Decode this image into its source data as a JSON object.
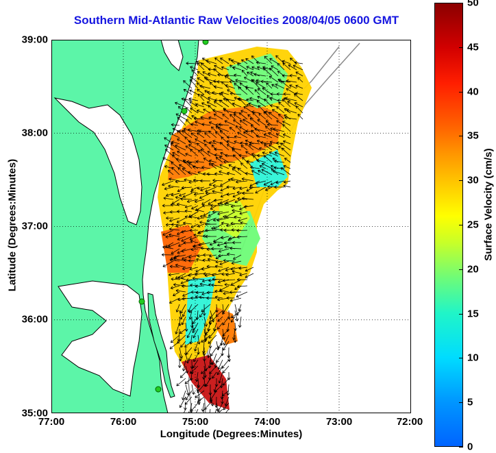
{
  "title": "Southern Mid-Atlantic Raw Velocities 2008/04/05 0600 GMT",
  "map": {
    "x_label": "Longitude (Degrees:Minutes)",
    "y_label": "Latitude (Degrees:Minutes)",
    "x_ticks": [
      "77:00",
      "76:00",
      "75:00",
      "74:00",
      "73:00",
      "72:00"
    ],
    "y_ticks": [
      "39:00",
      "38:00",
      "37:00",
      "36:00",
      "35:00"
    ],
    "lon_range": [
      -77,
      -72
    ],
    "lat_range": [
      35,
      39
    ],
    "grid": "dotted",
    "land_color": "#5cf5a8",
    "coastline_color": "#000000",
    "bathymetry_color": "#888888",
    "station_color": "#22cc22"
  },
  "colorbar": {
    "label": "Surface Velocity (cm/s)",
    "ticks": [
      "50",
      "45",
      "40",
      "35",
      "30",
      "25",
      "20",
      "15",
      "10",
      "5",
      "0"
    ],
    "range": [
      0,
      50
    ]
  }
}
